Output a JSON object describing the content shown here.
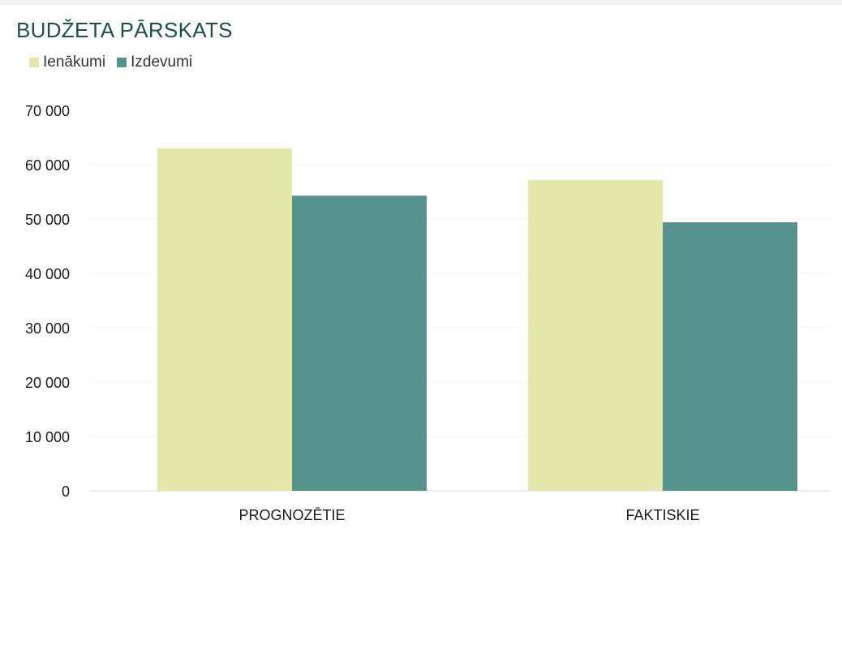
{
  "chart_data": {
    "type": "bar",
    "title": "BUDŽETA PĀRSKATS",
    "xlabel": "",
    "ylabel": "",
    "categories": [
      "PROGNOZĒTIE",
      "FAKTISKIE"
    ],
    "series": [
      {
        "name": "Ienākumi",
        "values": [
          63000,
          57200
        ],
        "color": "#e3e8aa"
      },
      {
        "name": "Izdevumi",
        "values": [
          54300,
          49400
        ],
        "color": "#56938f"
      }
    ],
    "ylim": [
      0,
      70000
    ],
    "yticks": [
      0,
      10000,
      20000,
      30000,
      40000,
      50000,
      60000,
      70000
    ],
    "ytick_labels": [
      "0",
      "10 000",
      "20 000",
      "30 000",
      "40 000",
      "50 000",
      "60 000",
      "70 000"
    ],
    "grid": true,
    "legend_position": "top-left"
  }
}
